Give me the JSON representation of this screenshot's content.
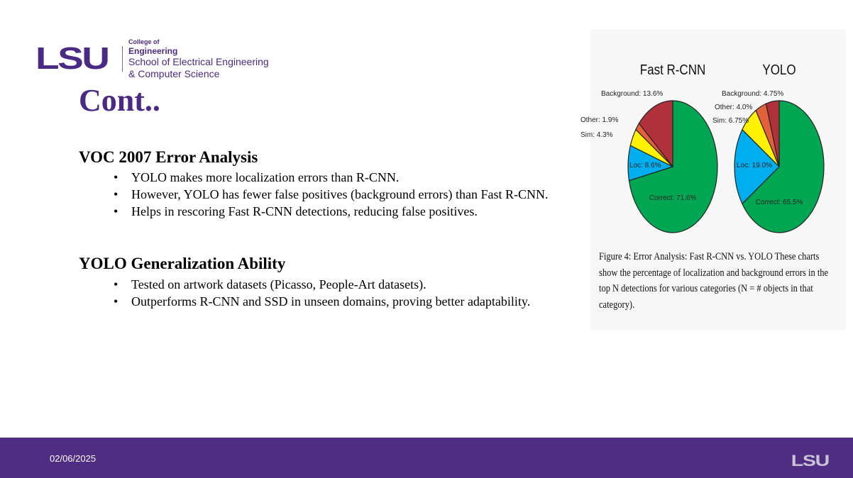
{
  "header": {
    "logo": "LSU",
    "college_small": "College of",
    "college": "Engineering",
    "school_line1": "School of Electrical Engineering",
    "school_line2": "& Computer Science"
  },
  "title": "Cont..",
  "sections": [
    {
      "heading": "VOC 2007 Error Analysis",
      "bullets": [
        "YOLO makes more localization errors than R-CNN.",
        "However, YOLO has fewer false positives (background errors) than Fast R-CNN.",
        "Helps in rescoring Fast R-CNN detections, reducing false positives."
      ]
    },
    {
      "heading": "YOLO Generalization Ability",
      "bullets": [
        "Tested on artwork datasets (Picasso, People-Art datasets).",
        "Outperforms R-CNN and SSD in unseen domains, proving better adaptability."
      ]
    }
  ],
  "figure": {
    "caption": "Figure 4:  Error Analysis:  Fast R-CNN vs.  YOLO These charts show the percentage of localization and background errors in the top N detections for various categories (N = # objects in that category)."
  },
  "chart_data": [
    {
      "type": "pie",
      "title": "Fast R-CNN",
      "labels": [
        "Correct",
        "Loc",
        "Sim",
        "Other",
        "Background"
      ],
      "values": [
        71.6,
        8.6,
        4.3,
        1.9,
        13.6
      ],
      "display": [
        "Correct: 71.6%",
        "Loc: 8.6%",
        "Sim: 4.3%",
        "Other: 1.9%",
        "Background: 13.6%"
      ],
      "colors": [
        "#00a651",
        "#00aeef",
        "#fff200",
        "#e2603a",
        "#b0313a"
      ]
    },
    {
      "type": "pie",
      "title": "YOLO",
      "labels": [
        "Correct",
        "Loc",
        "Sim",
        "Other",
        "Background"
      ],
      "values": [
        65.5,
        19.0,
        6.75,
        4.0,
        4.75
      ],
      "display": [
        "Correct: 65.5%",
        "Loc: 19.0%",
        "Sim: 6.75%",
        "Other: 4.0%",
        "Background: 4.75%"
      ],
      "colors": [
        "#00a651",
        "#00aeef",
        "#fff200",
        "#e2603a",
        "#b0313a"
      ]
    }
  ],
  "footer": {
    "date": "02/06/2025",
    "logo": "LSU"
  }
}
